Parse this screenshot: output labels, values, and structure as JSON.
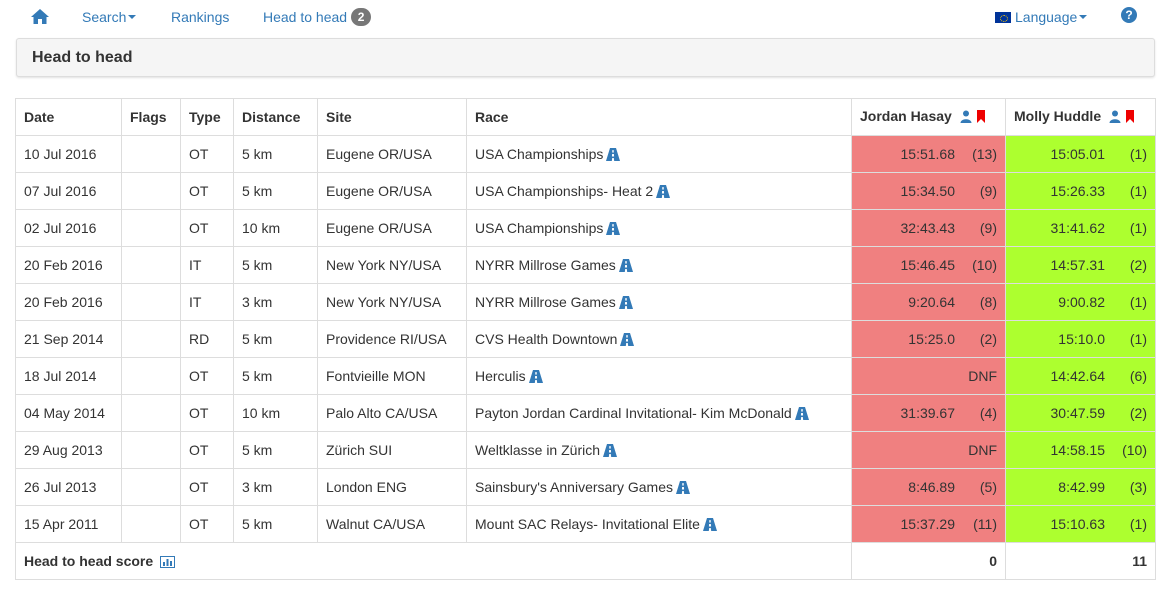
{
  "nav": {
    "search": "Search",
    "rankings": "Rankings",
    "head_to_head": "Head to head",
    "head_to_head_count": "2",
    "language": "Language",
    "help": "?"
  },
  "panel": {
    "title": "Head to head"
  },
  "table": {
    "headers": {
      "date": "Date",
      "flags": "Flags",
      "type": "Type",
      "distance": "Distance",
      "site": "Site",
      "race": "Race",
      "athlete1": "Jordan Hasay",
      "athlete2": "Molly Huddle"
    },
    "rows": [
      {
        "date": "10 Jul 2016",
        "flags": "",
        "type": "OT",
        "distance": "5 km",
        "site": "Eugene OR/USA",
        "race": "USA Championships",
        "a1_time": "15:51.68",
        "a1_place": "(13)",
        "a2_time": "15:05.01",
        "a2_place": "(1)"
      },
      {
        "date": "07 Jul 2016",
        "flags": "",
        "type": "OT",
        "distance": "5 km",
        "site": "Eugene OR/USA",
        "race": "USA Championships- Heat 2",
        "a1_time": "15:34.50",
        "a1_place": "(9)",
        "a2_time": "15:26.33",
        "a2_place": "(1)"
      },
      {
        "date": "02 Jul 2016",
        "flags": "",
        "type": "OT",
        "distance": "10 km",
        "site": "Eugene OR/USA",
        "race": "USA Championships",
        "a1_time": "32:43.43",
        "a1_place": "(9)",
        "a2_time": "31:41.62",
        "a2_place": "(1)"
      },
      {
        "date": "20 Feb 2016",
        "flags": "",
        "type": "IT",
        "distance": "5 km",
        "site": "New York NY/USA",
        "race": "NYRR Millrose Games",
        "a1_time": "15:46.45",
        "a1_place": "(10)",
        "a2_time": "14:57.31",
        "a2_place": "(2)"
      },
      {
        "date": "20 Feb 2016",
        "flags": "",
        "type": "IT",
        "distance": "3 km",
        "site": "New York NY/USA",
        "race": "NYRR Millrose Games",
        "a1_time": "9:20.64",
        "a1_place": "(8)",
        "a2_time": "9:00.82",
        "a2_place": "(1)"
      },
      {
        "date": "21 Sep 2014",
        "flags": "",
        "type": "RD",
        "distance": "5 km",
        "site": "Providence RI/USA",
        "race": "CVS Health Downtown",
        "a1_time": "15:25.0",
        "a1_place": "(2)",
        "a2_time": "15:10.0",
        "a2_place": "(1)"
      },
      {
        "date": "18 Jul 2014",
        "flags": "",
        "type": "OT",
        "distance": "5 km",
        "site": "Fontvieille MON",
        "race": "Herculis",
        "a1_time": "DNF",
        "a1_place": "",
        "a2_time": "14:42.64",
        "a2_place": "(6)"
      },
      {
        "date": "04 May 2014",
        "flags": "",
        "type": "OT",
        "distance": "10 km",
        "site": "Palo Alto CA/USA",
        "race": "Payton Jordan Cardinal Invitational- Kim McDonald",
        "a1_time": "31:39.67",
        "a1_place": "(4)",
        "a2_time": "30:47.59",
        "a2_place": "(2)"
      },
      {
        "date": "29 Aug 2013",
        "flags": "",
        "type": "OT",
        "distance": "5 km",
        "site": "Zürich SUI",
        "race": "Weltklasse in Zürich",
        "a1_time": "DNF",
        "a1_place": "",
        "a2_time": "14:58.15",
        "a2_place": "(10)"
      },
      {
        "date": "26 Jul 2013",
        "flags": "",
        "type": "OT",
        "distance": "3 km",
        "site": "London ENG",
        "race": "Sainsbury's Anniversary Games",
        "a1_time": "8:46.89",
        "a1_place": "(5)",
        "a2_time": "8:42.99",
        "a2_place": "(3)"
      },
      {
        "date": "15 Apr 2011",
        "flags": "",
        "type": "OT",
        "distance": "5 km",
        "site": "Walnut CA/USA",
        "race": "Mount SAC Relays- Invitational Elite",
        "a1_time": "15:37.29",
        "a1_place": "(11)",
        "a2_time": "15:10.63",
        "a2_place": "(1)"
      }
    ],
    "score": {
      "label": "Head to head score",
      "a1": "0",
      "a2": "11"
    }
  },
  "colors": {
    "link": "#337ab7",
    "loser_bg": "#f08080",
    "winner_bg": "#adff2f"
  },
  "icons": {
    "home": "home-icon",
    "race": "road-icon",
    "athlete": "user-icon",
    "bookmark": "flag-bookmark-icon",
    "chart": "bar-chart-icon",
    "help": "question-circle-icon",
    "language": "eu-flag-icon"
  }
}
